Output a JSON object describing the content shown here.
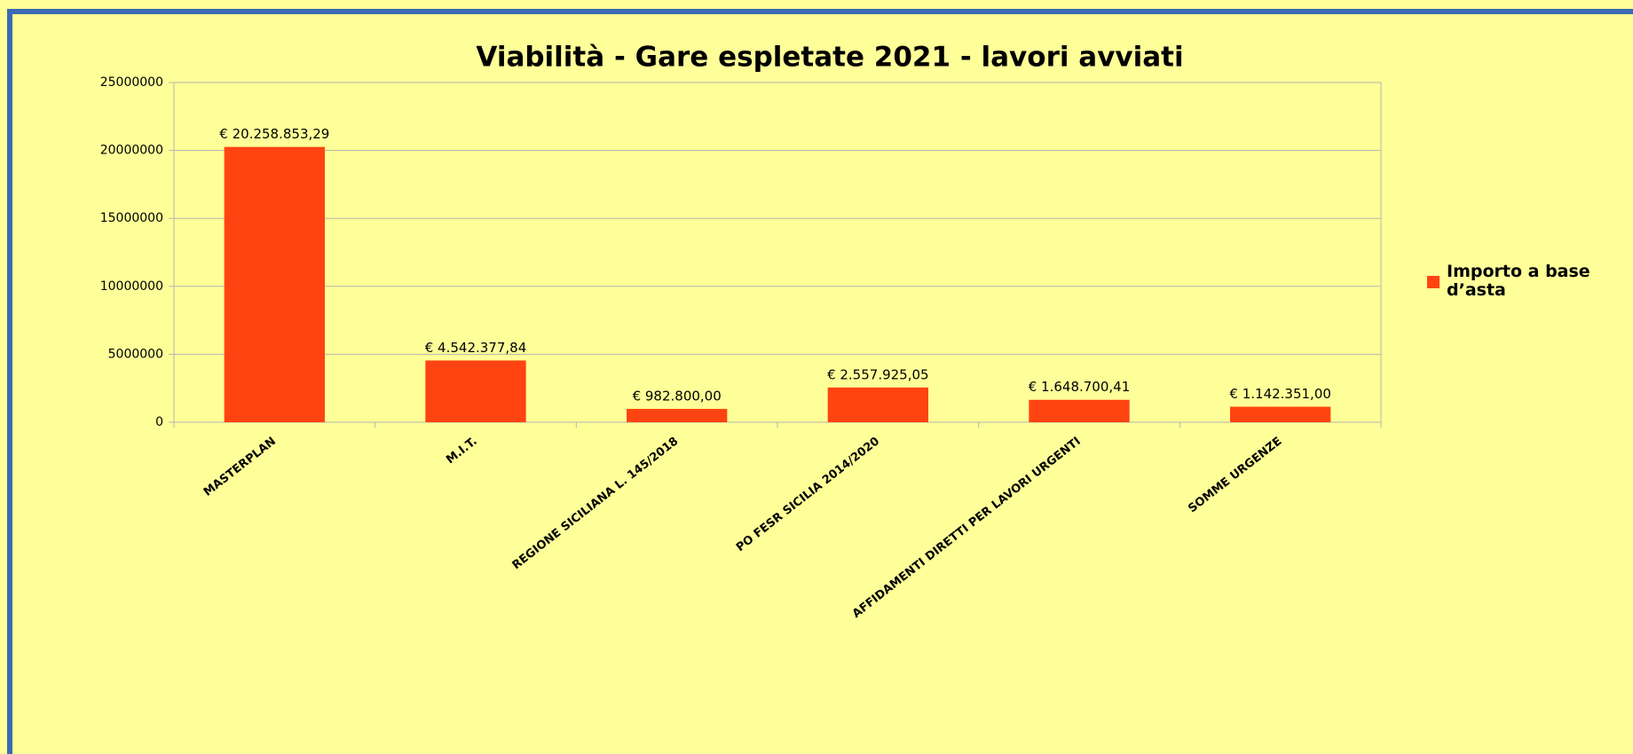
{
  "chart_data": {
    "type": "bar",
    "title": "Viabilità - Gare espletate 2021 - lavori avviati",
    "categories": [
      "MASTERPLAN",
      "M.I.T.",
      "REGIONE SICILIANA L. 145/2018",
      "PO FESR SICILIA 2014/2020",
      "AFFIDAMENTI DIRETTI PER LAVORI URGENTI",
      "SOMME URGENZE"
    ],
    "series": [
      {
        "name": "Importo a base d’asta",
        "color": "#ff4411",
        "values": [
          20258853.29,
          4542377.84,
          982800.0,
          2557925.05,
          1648700.41,
          1142351.0
        ],
        "value_labels": [
          "€ 20.258.853,29",
          "€ 4.542.377,84",
          "€ 982.800,00",
          "€ 2.557.925,05",
          "€ 1.648.700,41",
          "€ 1.142.351,00"
        ]
      }
    ],
    "ylim": [
      0,
      25000000
    ],
    "yticks": [
      0,
      5000000,
      10000000,
      15000000,
      20000000,
      25000000
    ],
    "grid": true,
    "legend": "right"
  }
}
